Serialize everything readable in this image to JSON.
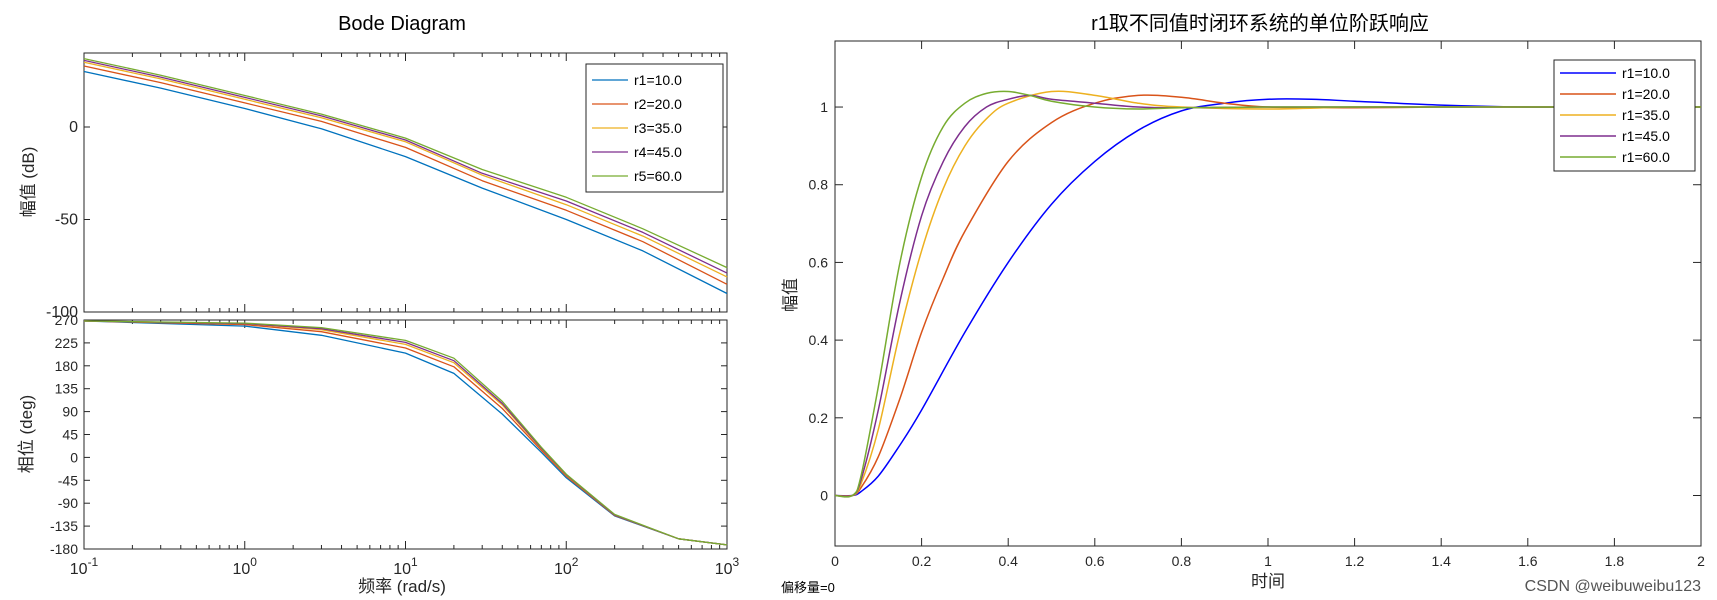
{
  "chart_data": [
    {
      "type": "line",
      "title": "Bode Diagram",
      "xlabel": "频率  (rad/s)",
      "xscale": "log",
      "xlim": [
        0.1,
        1000
      ],
      "x_ticks": [
        {
          "base": "10",
          "exp": "-1"
        },
        {
          "base": "10",
          "exp": "0"
        },
        {
          "base": "10",
          "exp": "1"
        },
        {
          "base": "10",
          "exp": "2"
        },
        {
          "base": "10",
          "exp": "3"
        }
      ],
      "magnitude": {
        "ylabel": "幅值 (dB)",
        "ylim": [
          -100,
          40
        ],
        "yticks": [
          "0",
          "-50",
          "-100"
        ],
        "series": [
          {
            "name": "r1=10.0",
            "color": "#0072BD",
            "x": [
              0.1,
              0.3,
              1,
              3,
              10,
              30,
              100,
              300,
              1000
            ],
            "values": [
              30,
              21,
              10,
              -1,
              -16,
              -33,
              -50,
              -67,
              -90
            ]
          },
          {
            "name": "r2=20.0",
            "color": "#D95319",
            "x": [
              0.1,
              0.3,
              1,
              3,
              10,
              30,
              100,
              300,
              1000
            ],
            "values": [
              33,
              24,
              13,
              3,
              -11,
              -29,
              -45,
              -62,
              -85
            ]
          },
          {
            "name": "r3=35.0",
            "color": "#EDB120",
            "x": [
              0.1,
              0.3,
              1,
              3,
              10,
              30,
              100,
              300,
              1000
            ],
            "values": [
              35,
              26,
              15,
              5,
              -8,
              -26,
              -42,
              -59,
              -81
            ]
          },
          {
            "name": "r4=45.0",
            "color": "#7E2F8E",
            "x": [
              0.1,
              0.3,
              1,
              3,
              10,
              30,
              100,
              300,
              1000
            ],
            "values": [
              36,
              27,
              16,
              6,
              -7,
              -25,
              -40,
              -57,
              -79
            ]
          },
          {
            "name": "r5=60.0",
            "color": "#77AC30",
            "x": [
              0.1,
              0.3,
              1,
              3,
              10,
              30,
              100,
              300,
              1000
            ],
            "values": [
              37,
              28,
              17,
              7,
              -6,
              -23,
              -38,
              -55,
              -76
            ]
          }
        ],
        "legend": "top-right"
      },
      "phase": {
        "ylabel": "相位 (deg)",
        "ylim": [
          -180,
          270
        ],
        "yticks": [
          "270",
          "225",
          "180",
          "135",
          "90",
          "45",
          "0",
          "-45",
          "-90",
          "-135",
          "-180"
        ],
        "series": [
          {
            "name": "r1=10.0",
            "color": "#0072BD",
            "x": [
              0.1,
              1,
              3,
              10,
              20,
              40,
              70,
              100,
              200,
              500,
              1000
            ],
            "values": [
              268,
              258,
              240,
              205,
              165,
              85,
              10,
              -40,
              -115,
              -160,
              -172
            ]
          },
          {
            "name": "r2=20.0",
            "color": "#D95319",
            "x": [
              0.1,
              1,
              3,
              10,
              20,
              40,
              70,
              100,
              200,
              500,
              1000
            ],
            "values": [
              268,
              261,
              247,
              215,
              178,
              96,
              14,
              -37,
              -114,
              -160,
              -172
            ]
          },
          {
            "name": "r3=35.0",
            "color": "#EDB120",
            "x": [
              0.1,
              1,
              3,
              10,
              20,
              40,
              70,
              100,
              200,
              500,
              1000
            ],
            "values": [
              268,
              263,
              251,
              222,
              186,
              103,
              17,
              -35,
              -113,
              -160,
              -172
            ]
          },
          {
            "name": "r4=45.0",
            "color": "#7E2F8E",
            "x": [
              0.1,
              1,
              3,
              10,
              20,
              40,
              70,
              100,
              200,
              500,
              1000
            ],
            "values": [
              268,
              263,
              253,
              226,
              190,
              106,
              18,
              -34,
              -113,
              -160,
              -172
            ]
          },
          {
            "name": "r5=60.0",
            "color": "#77AC30",
            "x": [
              0.1,
              1,
              3,
              10,
              20,
              40,
              70,
              100,
              200,
              500,
              1000
            ],
            "values": [
              268,
              264,
              255,
              230,
              195,
              110,
              20,
              -33,
              -112,
              -160,
              -172
            ]
          }
        ]
      }
    },
    {
      "type": "line",
      "title": "r1取不同值时闭环系统的单位阶跃响应",
      "xlabel": "时间",
      "ylabel": "幅值",
      "xlim": [
        0,
        2
      ],
      "ylim": [
        -0.13,
        1.17
      ],
      "xticks": [
        "0",
        "0.2",
        "0.4",
        "0.6",
        "0.8",
        "1",
        "1.2",
        "1.4",
        "1.6",
        "1.8",
        "2"
      ],
      "yticks": [
        "0",
        "0.2",
        "0.4",
        "0.6",
        "0.8",
        "1"
      ],
      "legend": "top-right",
      "series": [
        {
          "name": "r1=10.0",
          "color": "#0000FF",
          "x": [
            0,
            0.04,
            0.06,
            0.1,
            0.15,
            0.2,
            0.3,
            0.4,
            0.5,
            0.6,
            0.7,
            0.8,
            0.9,
            1.0,
            1.1,
            1.2,
            1.4,
            1.6,
            1.8,
            2.0
          ],
          "values": [
            0,
            0,
            0.01,
            0.05,
            0.13,
            0.22,
            0.42,
            0.6,
            0.75,
            0.86,
            0.94,
            0.99,
            1.01,
            1.02,
            1.02,
            1.015,
            1.005,
            1.0,
            1.0,
            1.0
          ]
        },
        {
          "name": "r1=20.0",
          "color": "#D95319",
          "x": [
            0,
            0.04,
            0.06,
            0.1,
            0.15,
            0.2,
            0.25,
            0.3,
            0.4,
            0.5,
            0.6,
            0.7,
            0.8,
            0.9,
            1.0,
            1.2,
            1.4,
            1.6,
            1.8,
            2.0
          ],
          "values": [
            0,
            0,
            0.02,
            0.1,
            0.25,
            0.42,
            0.56,
            0.68,
            0.86,
            0.96,
            1.01,
            1.03,
            1.025,
            1.01,
            1.0,
            0.998,
            1.0,
            1.0,
            1.0,
            1.0
          ]
        },
        {
          "name": "r1=35.0",
          "color": "#EDB120",
          "x": [
            0,
            0.04,
            0.06,
            0.1,
            0.15,
            0.2,
            0.25,
            0.3,
            0.35,
            0.4,
            0.5,
            0.6,
            0.7,
            0.8,
            1.0,
            1.2,
            1.4,
            1.6,
            1.8,
            2.0
          ],
          "values": [
            0,
            0,
            0.03,
            0.17,
            0.42,
            0.63,
            0.79,
            0.9,
            0.97,
            1.01,
            1.04,
            1.03,
            1.01,
            1.0,
            0.995,
            1.0,
            1.0,
            1.0,
            1.0,
            1.0
          ]
        },
        {
          "name": "r1=45.0",
          "color": "#7E2F8E",
          "x": [
            0,
            0.04,
            0.06,
            0.1,
            0.15,
            0.2,
            0.25,
            0.3,
            0.35,
            0.4,
            0.45,
            0.5,
            0.6,
            0.7,
            0.8,
            1.0,
            1.2,
            1.4,
            1.6,
            2.0
          ],
          "values": [
            0,
            0,
            0.04,
            0.22,
            0.5,
            0.72,
            0.86,
            0.95,
            1.0,
            1.02,
            1.03,
            1.02,
            1.01,
            1.0,
            0.998,
            1.0,
            1.0,
            1.0,
            1.0,
            1.0
          ]
        },
        {
          "name": "r1=60.0",
          "color": "#77AC30",
          "x": [
            0,
            0.04,
            0.06,
            0.1,
            0.15,
            0.2,
            0.25,
            0.3,
            0.35,
            0.4,
            0.45,
            0.5,
            0.6,
            0.7,
            0.8,
            1.0,
            1.2,
            1.4,
            1.6,
            2.0
          ],
          "values": [
            0,
            0,
            0.05,
            0.28,
            0.6,
            0.82,
            0.95,
            1.01,
            1.035,
            1.04,
            1.03,
            1.015,
            1.0,
            0.995,
            0.998,
            1.0,
            1.0,
            1.0,
            1.0,
            1.0
          ]
        }
      ]
    }
  ],
  "footer": {
    "offset_text": "偏移量=0",
    "watermark": "CSDN @weibuweibu123"
  }
}
